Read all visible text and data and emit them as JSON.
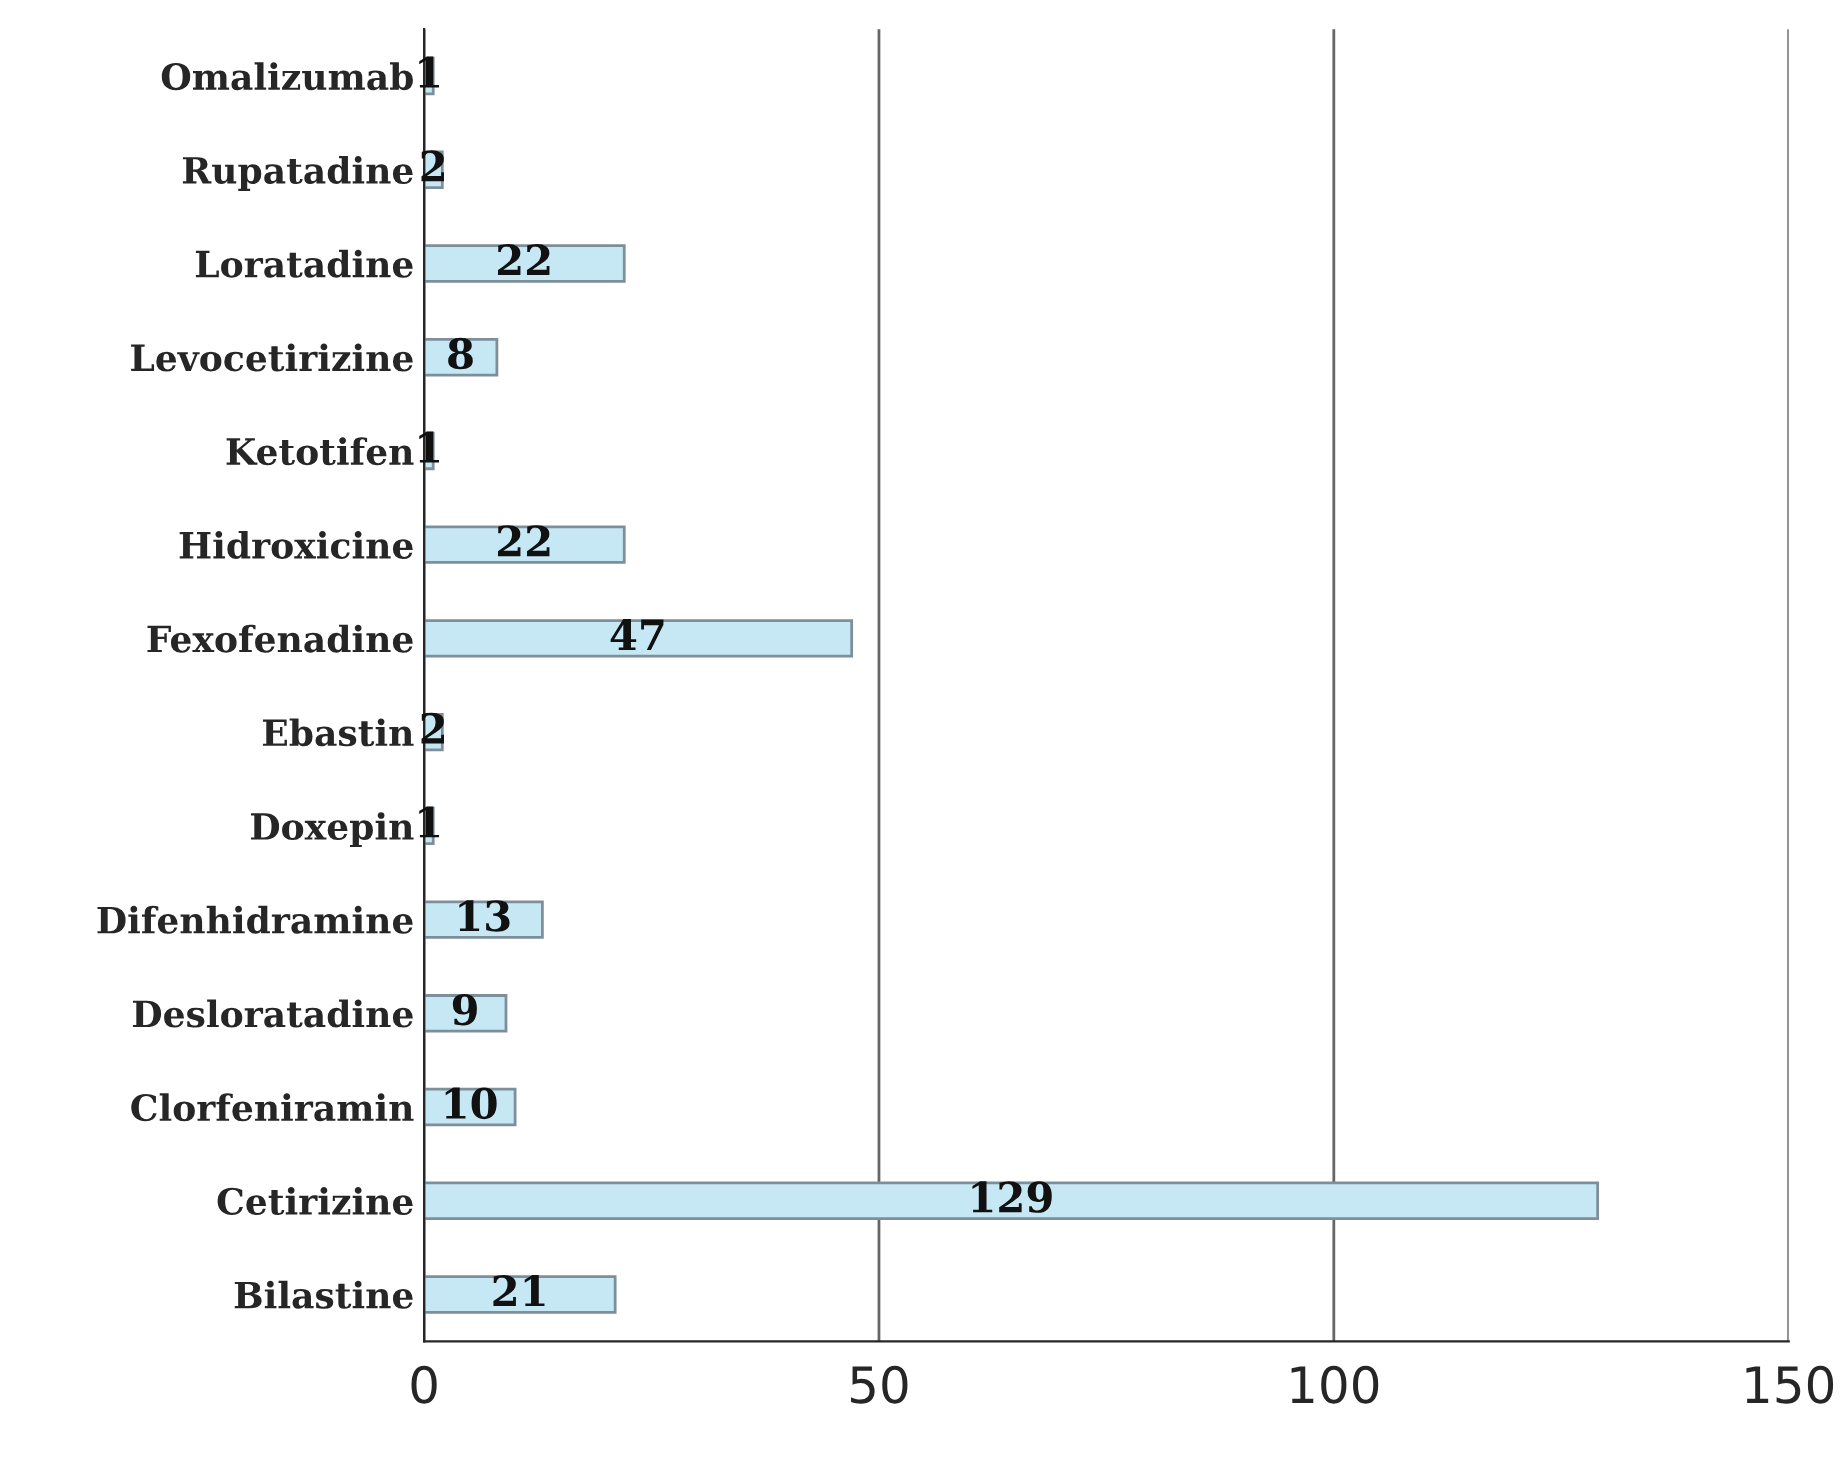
{
  "chart_data": {
    "type": "bar",
    "orientation": "horizontal",
    "categories": [
      "Omalizumab",
      "Rupatadine",
      "Loratadine",
      "Levocetirizine",
      "Ketotifen",
      "Hidroxicine",
      "Fexofenadine",
      "Ebastin",
      "Doxepin",
      "Difenhidramine",
      "Desloratadine",
      "Clorfeniramin",
      "Cetirizine",
      "Bilastine"
    ],
    "values": [
      1,
      2,
      22,
      8,
      1,
      22,
      47,
      2,
      1,
      13,
      9,
      10,
      129,
      21
    ],
    "color": "#c6e8f5",
    "xlim": [
      0,
      150
    ],
    "xticks": [
      0,
      50,
      100,
      150
    ],
    "grid": "x",
    "data_labels": true
  }
}
